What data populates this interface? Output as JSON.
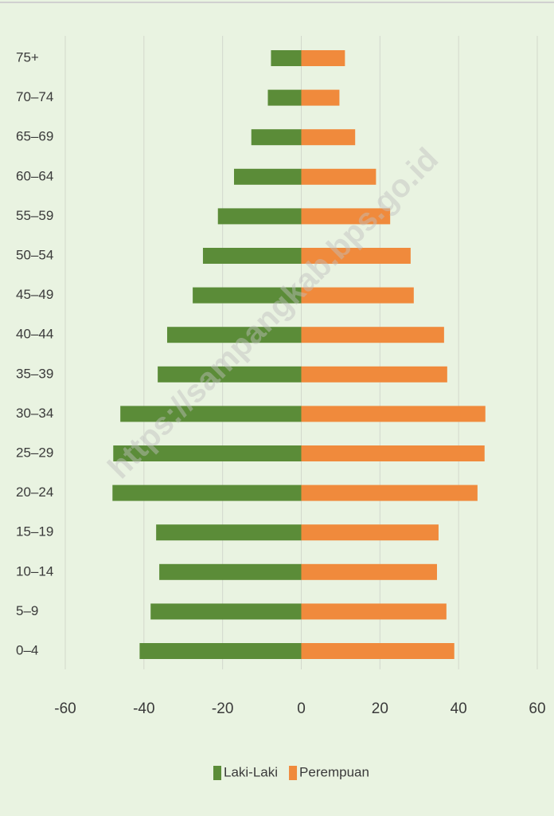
{
  "chart_data": {
    "type": "bar",
    "orientation": "horizontal",
    "barmode": "overlay",
    "categories": [
      "0–4",
      "5–9",
      "10–14",
      "15–19",
      "20–24",
      "25–29",
      "30–34",
      "35–39",
      "40–44",
      "45–49",
      "50–54",
      "55–59",
      "60–64",
      "65–69",
      "70–74",
      "75+"
    ],
    "series": [
      {
        "name": "Laki-Laki",
        "color": "#5b8c38",
        "values": [
          -41.1,
          -38.3,
          -36.1,
          -36.9,
          -48.0,
          -47.8,
          -46.0,
          -36.5,
          -34.1,
          -27.6,
          -25.0,
          -21.2,
          -17.1,
          -12.7,
          -8.5,
          -7.7
        ]
      },
      {
        "name": "Perempuan",
        "color": "#f08a3c",
        "values": [
          38.9,
          36.9,
          34.5,
          34.9,
          44.8,
          46.6,
          46.8,
          37.1,
          36.3,
          28.6,
          27.8,
          22.6,
          19.0,
          13.7,
          9.7,
          11.1
        ]
      }
    ],
    "xlim": [
      -60,
      60
    ],
    "xticks": [
      -60,
      -40,
      -20,
      0,
      20,
      40,
      60
    ],
    "grid": true,
    "legend": "bottom",
    "watermark": "https://sampangkab.bps.go.id"
  }
}
